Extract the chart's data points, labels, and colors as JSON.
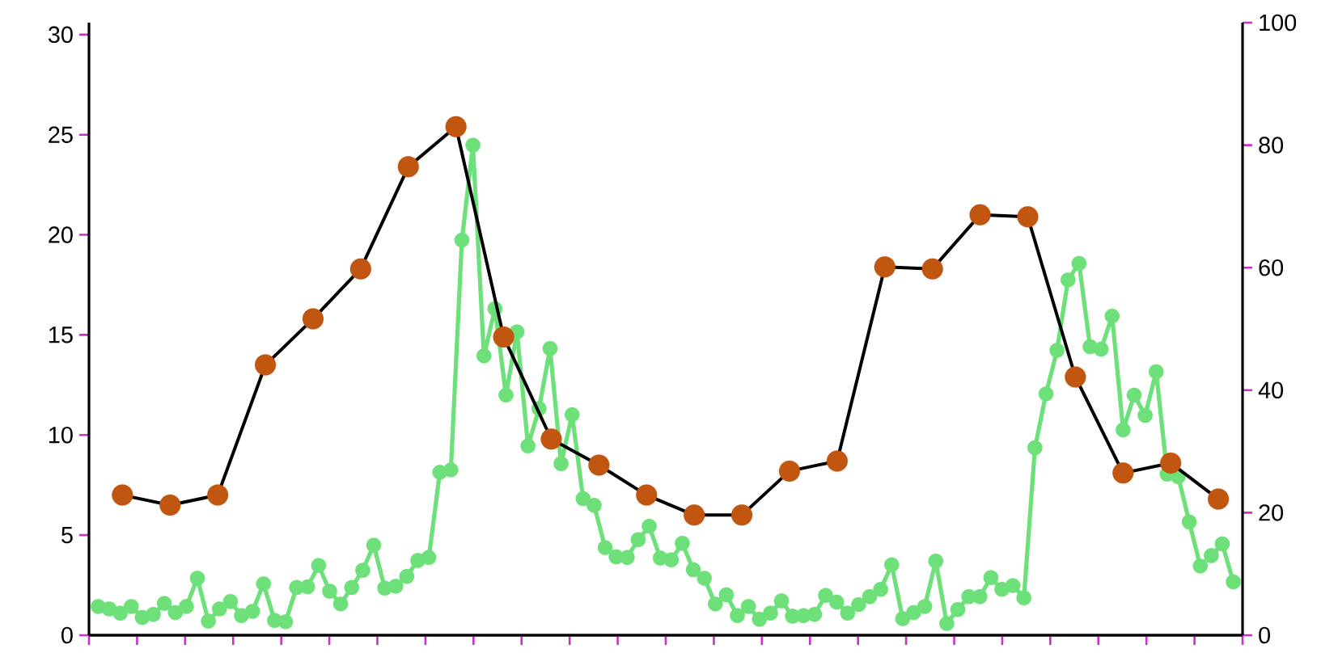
{
  "chart_data": [
    {
      "type": "line",
      "categories": [
        null,
        null,
        null,
        null,
        null,
        null,
        null,
        null,
        null,
        null,
        null,
        null,
        null,
        null,
        null,
        null,
        null,
        null,
        null,
        null,
        null,
        null,
        null,
        null
      ],
      "ylim": [
        0,
        30.6
      ],
      "yticks": [
        0,
        5,
        10,
        15,
        20,
        25,
        30
      ],
      "marker": "circle",
      "series": [
        {
          "color": "#000000",
          "values": [
            7.0,
            6.5,
            7.0,
            13.5,
            15.8,
            18.3,
            23.4,
            25.4,
            14.9,
            9.8,
            8.5,
            7.0,
            6.0,
            6.0,
            8.2,
            8.7,
            18.4,
            18.3,
            21.0,
            20.9,
            12.9,
            8.1,
            8.6,
            6.8
          ]
        }
      ]
    },
    {
      "type": "line",
      "categories": [
        null,
        null,
        null,
        null,
        null,
        null,
        null,
        null,
        null,
        null,
        null,
        null,
        null,
        null,
        null,
        null,
        null,
        null,
        null,
        null,
        null,
        null,
        null,
        null,
        null,
        null,
        null,
        null,
        null,
        null,
        null,
        null,
        null,
        null,
        null,
        null,
        null,
        null,
        null,
        null,
        null,
        null,
        null,
        null,
        null,
        null,
        null,
        null,
        null,
        null,
        null,
        null,
        null,
        null,
        null,
        null,
        null,
        null,
        null,
        null,
        null,
        null,
        null,
        null,
        null,
        null,
        null,
        null,
        null,
        null,
        null,
        null,
        null,
        null,
        null,
        null,
        null,
        null,
        null,
        null,
        null,
        null,
        null,
        null,
        null,
        null,
        null,
        null,
        null,
        null,
        null,
        null,
        null,
        null,
        null,
        null,
        null,
        null,
        null,
        null,
        null,
        null,
        null,
        null
      ],
      "ylim": [
        0,
        100
      ],
      "yticks": [
        0,
        20,
        40,
        60,
        80,
        100
      ],
      "marker": "circle",
      "series": [
        {
          "color": "#6ee07a",
          "values": [
            4.7,
            4.3,
            3.6,
            4.7,
            2.9,
            3.4,
            5.2,
            3.7,
            4.7,
            9.3,
            2.3,
            4.3,
            5.5,
            3.2,
            3.9,
            8.4,
            2.4,
            2.2,
            7.8,
            7.9,
            11.4,
            7.2,
            5.1,
            7.8,
            10.6,
            14.7,
            7.7,
            8.0,
            9.6,
            12.2,
            12.7,
            26.6,
            27.0,
            64.5,
            80.0,
            45.6,
            53.3,
            39.2,
            49.5,
            30.9,
            37.0,
            46.8,
            28.0,
            36.0,
            22.3,
            21.2,
            14.3,
            12.8,
            12.7,
            15.6,
            17.8,
            12.6,
            12.3,
            15.0,
            10.7,
            9.3,
            5.1,
            6.6,
            3.2,
            4.7,
            2.6,
            3.6,
            5.6,
            3.1,
            3.2,
            3.4,
            6.5,
            5.4,
            3.6,
            5.0,
            6.3,
            7.5,
            11.5,
            2.7,
            3.7,
            4.7,
            12.1,
            1.9,
            4.2,
            6.3,
            6.3,
            9.4,
            7.5,
            8.1,
            6.1,
            30.6,
            39.4,
            46.5,
            58.0,
            60.7,
            47.1,
            46.7,
            52.1,
            33.5,
            39.2,
            35.9,
            43.0,
            26.3,
            25.9,
            18.5,
            11.3,
            13.0,
            14.9,
            8.7
          ]
        }
      ]
    }
  ]
}
